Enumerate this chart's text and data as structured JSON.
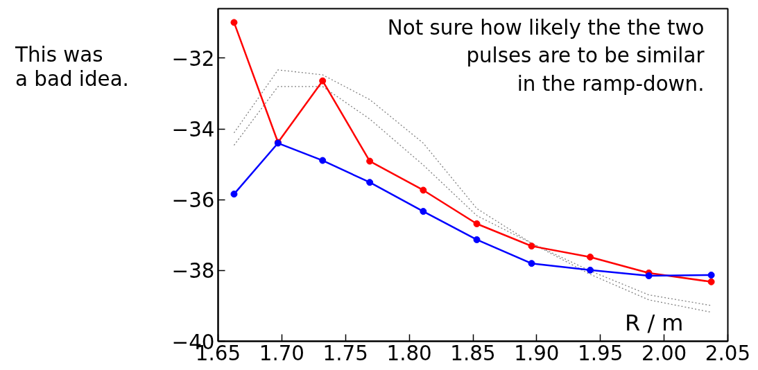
{
  "chart_data": {
    "type": "line",
    "xlabel": "R / m",
    "xlim": [
      1.65,
      2.05
    ],
    "xticks": [
      1.65,
      {
        "value": 1.7,
        "label": "1.70"
      },
      1.75,
      {
        "value": 1.8,
        "label": "1.80"
      },
      1.85,
      {
        "value": 1.9,
        "label": "1.90"
      },
      1.95,
      {
        "value": 2.0,
        "label": "2.00"
      },
      2.05
    ],
    "ylim": [
      -40,
      -30.6
    ],
    "yticks": [
      -40,
      -38,
      -36,
      -34,
      -32
    ],
    "x": [
      1.6625,
      1.697,
      1.732,
      1.769,
      1.811,
      1.853,
      1.896,
      1.942,
      1.988,
      2.037
    ],
    "series": [
      {
        "color": "#808080",
        "values": [
          -34.11,
          -32.33,
          -32.47,
          -33.17,
          -34.4,
          -36.25,
          -37.23,
          -38.01,
          -38.69,
          -38.99
        ],
        "marker": "none",
        "line_style": "dotted"
      },
      {
        "color": "#808080",
        "values": [
          -34.46,
          -32.8,
          -32.8,
          -33.72,
          -35.02,
          -36.45,
          -37.23,
          -38.11,
          -38.83,
          -39.18
        ],
        "marker": "none",
        "line_style": "dotted"
      },
      {
        "color": "#ff0000",
        "values": [
          -30.99,
          -34.38,
          -32.64,
          -34.91,
          -35.73,
          -36.68,
          -37.31,
          -37.62,
          -38.07,
          -38.32
        ],
        "marker": "circle",
        "line_style": "solid"
      },
      {
        "color": "#0000ff",
        "values": [
          -35.84,
          -34.4,
          -34.89,
          -35.51,
          -36.33,
          -37.13,
          -37.8,
          -37.99,
          -38.15,
          -38.13
        ],
        "marker": "circle",
        "line_style": "solid"
      }
    ],
    "annotations": [
      "Not sure how likely the the two\npulses are to be similar\nin the ramp-down.",
      "This was\na bad idea."
    ],
    "grid": false
  }
}
